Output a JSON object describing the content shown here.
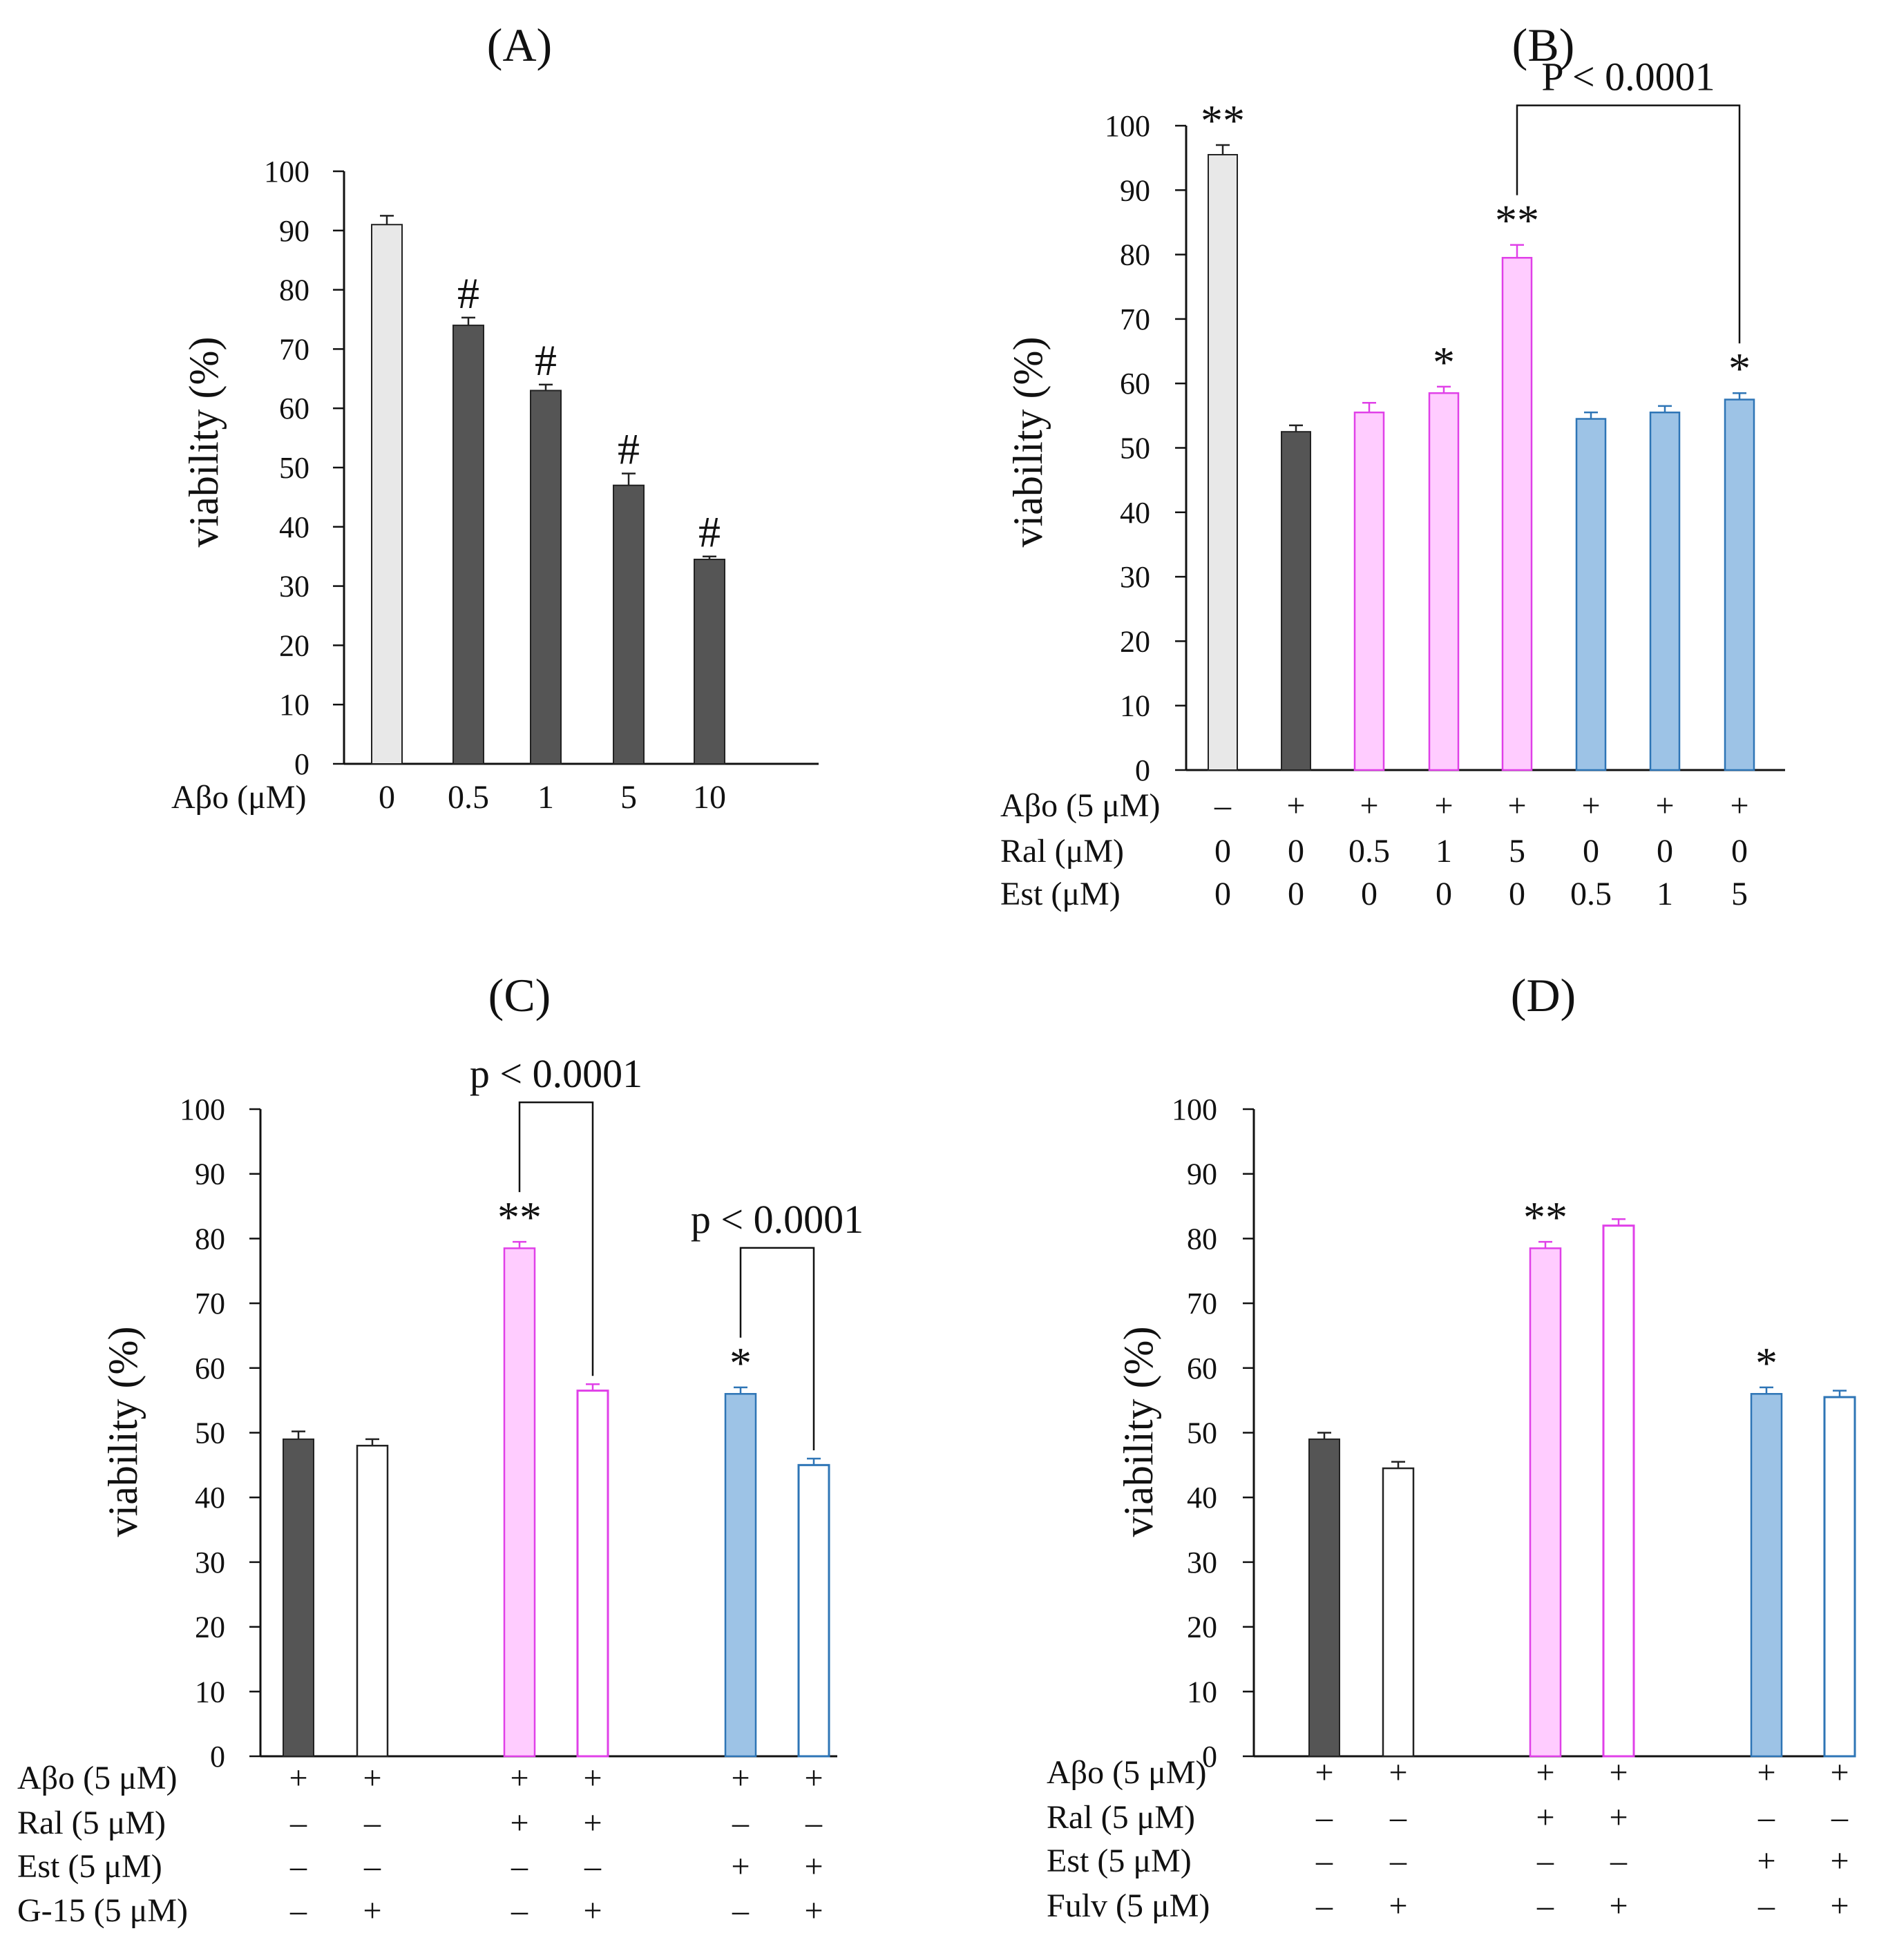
{
  "colors": {
    "control": "#e8e8e8",
    "abo": "#555555",
    "ral": "#ffccff",
    "ral_edge": "#e040e8",
    "est": "#9dc3e6",
    "est_edge": "#2e75b6",
    "open": "#ffffff"
  },
  "chart_data": [
    {
      "type": "bar",
      "title": "(A)",
      "ylabel": "viability (%)",
      "ylim": [
        0,
        100
      ],
      "yticks": [
        "0",
        "10",
        "20",
        "30",
        "40",
        "50",
        "60",
        "70",
        "80",
        "90",
        "100"
      ],
      "row_labels": [
        "Aβo (μM)"
      ],
      "rows": [
        [
          "0",
          "0.5",
          "1",
          "5",
          "10"
        ]
      ],
      "values": [
        91,
        74,
        63,
        47,
        34.5
      ],
      "errors": [
        1.5,
        1.3,
        1.0,
        2.0,
        0.5
      ],
      "marks": [
        "",
        "#",
        "#",
        "#",
        "#"
      ],
      "styles": [
        "control",
        "abo",
        "abo",
        "abo",
        "abo"
      ],
      "brackets": []
    },
    {
      "type": "bar",
      "title": "(B)",
      "ylabel": "viability (%)",
      "ylim": [
        0,
        100
      ],
      "yticks": [
        "0",
        "10",
        "20",
        "30",
        "40",
        "50",
        "60",
        "70",
        "80",
        "90",
        "100"
      ],
      "row_labels": [
        "Aβo (5 μM)",
        "Ral (μM)",
        "Est (μM)"
      ],
      "rows": [
        [
          "–",
          "+",
          "+",
          "+",
          "+",
          "+",
          "+",
          "+"
        ],
        [
          "0",
          "0",
          "0.5",
          "1",
          "5",
          "0",
          "0",
          "0"
        ],
        [
          "0",
          "0",
          "0",
          "0",
          "0",
          "0.5",
          "1",
          "5"
        ]
      ],
      "values": [
        95.5,
        52.5,
        55.5,
        58.5,
        79.5,
        54.5,
        55.5,
        57.5
      ],
      "errors": [
        1.5,
        1.0,
        1.5,
        1.0,
        2.0,
        1.0,
        1.0,
        1.0
      ],
      "marks": [
        "**",
        "",
        "",
        "*",
        "**",
        "",
        "",
        "*"
      ],
      "styles": [
        "control",
        "abo",
        "ral",
        "ral",
        "ral",
        "est",
        "est",
        "est"
      ],
      "brackets": [
        {
          "from": 4,
          "to": 7,
          "label": "P < 0.0001"
        }
      ]
    },
    {
      "type": "bar",
      "title": "(C)",
      "ylabel": "viability (%)",
      "ylim": [
        0,
        100
      ],
      "yticks": [
        "0",
        "10",
        "20",
        "30",
        "40",
        "50",
        "60",
        "70",
        "80",
        "90",
        "100"
      ],
      "row_labels": [
        "Aβo  (5 μM)",
        "Ral   (5 μM)",
        "Est    (5 μM)",
        "G-15 (5 μM)"
      ],
      "rows": [
        [
          "+",
          "+",
          "+",
          "+",
          "+",
          "+"
        ],
        [
          "–",
          "–",
          "+",
          "+",
          "–",
          "–"
        ],
        [
          "–",
          "–",
          "–",
          "–",
          "+",
          "+"
        ],
        [
          "–",
          "+",
          "–",
          "+",
          "–",
          "+"
        ]
      ],
      "values": [
        49,
        48,
        78.5,
        56.5,
        56,
        45
      ],
      "errors": [
        1.2,
        1.0,
        1.0,
        1.0,
        1.0,
        1.0
      ],
      "marks": [
        "",
        "",
        "**",
        "",
        "*",
        ""
      ],
      "styles": [
        "abo",
        "open_black",
        "ral",
        "open_ral",
        "est",
        "open_est"
      ],
      "brackets": [
        {
          "from": 2,
          "to": 3,
          "label": "p < 0.0001"
        },
        {
          "from": 4,
          "to": 5,
          "label": "p < 0.0001"
        }
      ]
    },
    {
      "type": "bar",
      "title": "(D)",
      "ylabel": "viability (%)",
      "ylim": [
        0,
        100
      ],
      "yticks": [
        "0",
        "10",
        "20",
        "30",
        "40",
        "50",
        "60",
        "70",
        "80",
        "90",
        "100"
      ],
      "row_labels": [
        "Aβo (5 μM)",
        "Ral  (5 μM)",
        "Est   (5 μM)",
        "Fulv (5 μM)"
      ],
      "rows": [
        [
          "+",
          "+",
          "+",
          "+",
          "+",
          "+"
        ],
        [
          "–",
          "–",
          "+",
          "+",
          "–",
          "–"
        ],
        [
          "–",
          "–",
          "–",
          "–",
          "+",
          "+"
        ],
        [
          "–",
          "+",
          "–",
          "+",
          "–",
          "+"
        ]
      ],
      "values": [
        49,
        44.5,
        78.5,
        82,
        56,
        55.5
      ],
      "errors": [
        1.0,
        1.0,
        1.0,
        1.0,
        1.0,
        1.0
      ],
      "marks": [
        "",
        "",
        "**",
        "",
        "*",
        ""
      ],
      "styles": [
        "abo",
        "open_black",
        "ral",
        "open_ral",
        "est",
        "open_est"
      ],
      "brackets": []
    }
  ]
}
